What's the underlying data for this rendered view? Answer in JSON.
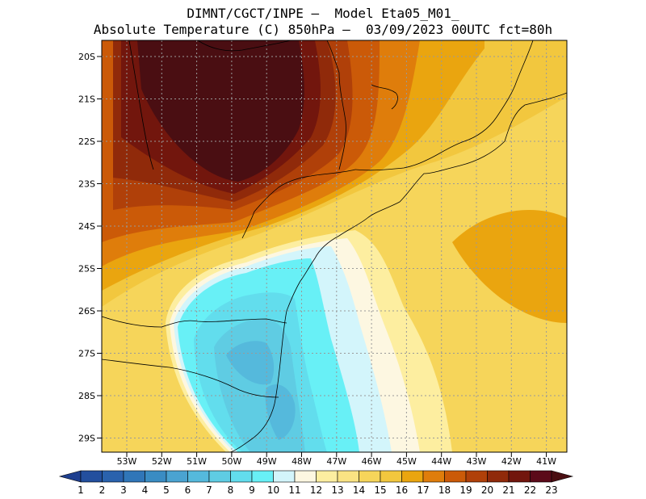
{
  "header": {
    "line1": "DIMNT/CGCT/INPE –  Model Eta05_M01_",
    "line2": "Absolute Temperature (C) 850hPa –  03/09/2023 00UTC fct=80h"
  },
  "lat_labels": [
    "20S",
    "21S",
    "22S",
    "23S",
    "24S",
    "25S",
    "26S",
    "27S",
    "28S",
    "29S"
  ],
  "lon_labels": [
    "53W",
    "52W",
    "51W",
    "50W",
    "49W",
    "48W",
    "47W",
    "46W",
    "45W",
    "44W",
    "43W",
    "42W",
    "41W"
  ],
  "colorbar": {
    "labels": [
      "1",
      "2",
      "3",
      "4",
      "5",
      "6",
      "7",
      "8",
      "9",
      "10",
      "11",
      "12",
      "13",
      "14",
      "15",
      "16",
      "17",
      "18",
      "19",
      "20",
      "21",
      "22",
      "23"
    ],
    "colors": [
      "#1e3f8f",
      "#234f9e",
      "#2a62ad",
      "#3076b8",
      "#3a8cc3",
      "#4aa3d1",
      "#55b9dc",
      "#5fcce3",
      "#62dded",
      "#68f0f6",
      "#d3f5fb",
      "#fdf7e1",
      "#fdeea0",
      "#fae383",
      "#f6d55a",
      "#f2c73e",
      "#eaa50f",
      "#df7d0b",
      "#cb5a08",
      "#b04009",
      "#902a0a",
      "#72160d",
      "#5b0a1a",
      "#4a0e12"
    ]
  }
}
